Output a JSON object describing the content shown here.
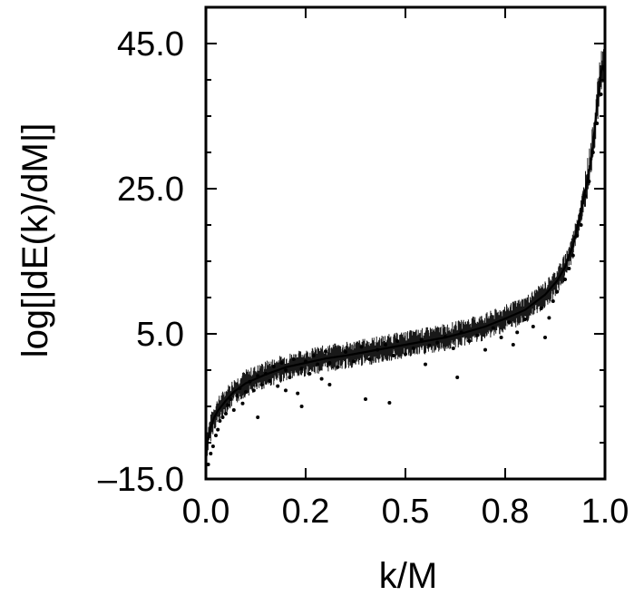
{
  "chart_data": {
    "type": "scatter",
    "xlabel": "k/M",
    "ylabel": "log[|dE(k)/dM|]",
    "xlim": [
      0.0,
      1.0
    ],
    "ylim": [
      -15.0,
      50.0
    ],
    "x_ticks": [
      "0.0",
      "0.2",
      "0.5",
      "0.8",
      "1.0"
    ],
    "x_tick_values": [
      0.0,
      0.25,
      0.5,
      0.75,
      1.0
    ],
    "y_ticks": [
      "-15.0",
      "5.0",
      "25.0",
      "45.0"
    ],
    "y_tick_values": [
      -15.0,
      5.0,
      25.0,
      45.0
    ],
    "grid": false,
    "series": [
      {
        "style": "line",
        "x": [
          0.0,
          0.01,
          0.02,
          0.03,
          0.05,
          0.07,
          0.1,
          0.15,
          0.2,
          0.25,
          0.3,
          0.35,
          0.4,
          0.45,
          0.5,
          0.55,
          0.6,
          0.65,
          0.7,
          0.75,
          0.8,
          0.85,
          0.88,
          0.9,
          0.92,
          0.93,
          0.94,
          0.95,
          0.96,
          0.97,
          0.975,
          0.98,
          0.985,
          0.99,
          0.995,
          1.0
        ],
        "y": [
          -11.0,
          -8.3,
          -6.6,
          -5.6,
          -4.2,
          -3.0,
          -1.8,
          -0.6,
          0.4,
          1.0,
          1.6,
          2.0,
          2.5,
          3.0,
          3.5,
          4.0,
          4.5,
          5.2,
          6.0,
          7.1,
          8.3,
          10.4,
          12.3,
          14.2,
          17.2,
          19.6,
          21.8,
          24.6,
          27.2,
          31.0,
          33.8,
          36.2,
          38.6,
          41.0,
          42.0,
          40.8
        ]
      },
      {
        "style": "points",
        "x": [
          0.006,
          0.012,
          0.018,
          0.025,
          0.03,
          0.035,
          0.042,
          0.05,
          0.055,
          0.062,
          0.07,
          0.078,
          0.085,
          0.092,
          0.1,
          0.11,
          0.12,
          0.13,
          0.14,
          0.15,
          0.16,
          0.17,
          0.18,
          0.19,
          0.2,
          0.21,
          0.22,
          0.23,
          0.24,
          0.25,
          0.26,
          0.27,
          0.28,
          0.29,
          0.3,
          0.31,
          0.33,
          0.35,
          0.37,
          0.39,
          0.41,
          0.43,
          0.45,
          0.47,
          0.48,
          0.5,
          0.52,
          0.54,
          0.56,
          0.58,
          0.6,
          0.62,
          0.64,
          0.66,
          0.68,
          0.7,
          0.72,
          0.74,
          0.76,
          0.78,
          0.8,
          0.82,
          0.84,
          0.86,
          0.87,
          0.88,
          0.9,
          0.91,
          0.92,
          0.93,
          0.94,
          0.95,
          0.96,
          0.97,
          0.98,
          0.99,
          0.13,
          0.24,
          0.4,
          0.46,
          0.63,
          0.77,
          0.31,
          0.2,
          0.55,
          0.85
        ],
        "y": [
          -13.0,
          -11.5,
          -10.5,
          -9.0,
          -8.2,
          -7.0,
          -6.5,
          -6.0,
          -4.8,
          -4.0,
          -5.5,
          -3.5,
          -2.5,
          -4.6,
          -3.0,
          -1.6,
          -2.8,
          -0.8,
          -2.0,
          -0.5,
          -1.5,
          0.5,
          -2.2,
          1.0,
          0.0,
          -1.0,
          1.5,
          -3.2,
          0.2,
          1.2,
          -0.5,
          2.0,
          0.8,
          -1.2,
          2.6,
          1.0,
          0.4,
          2.5,
          1.2,
          3.2,
          1.5,
          2.8,
          3.5,
          2.0,
          4.0,
          2.2,
          3.0,
          4.2,
          3.4,
          3.8,
          4.6,
          3.0,
          5.2,
          4.0,
          4.8,
          2.8,
          5.8,
          4.5,
          6.6,
          5.2,
          7.0,
          6.0,
          8.5,
          7.2,
          9.5,
          10.8,
          12.5,
          14.0,
          15.8,
          18.5,
          20.0,
          24.0,
          26.0,
          30.0,
          34.0,
          38.0,
          -6.5,
          -5.0,
          -4.0,
          -4.5,
          -1.0,
          3.5,
          -2.0,
          -2.8,
          0.8,
          4.5
        ]
      }
    ]
  }
}
